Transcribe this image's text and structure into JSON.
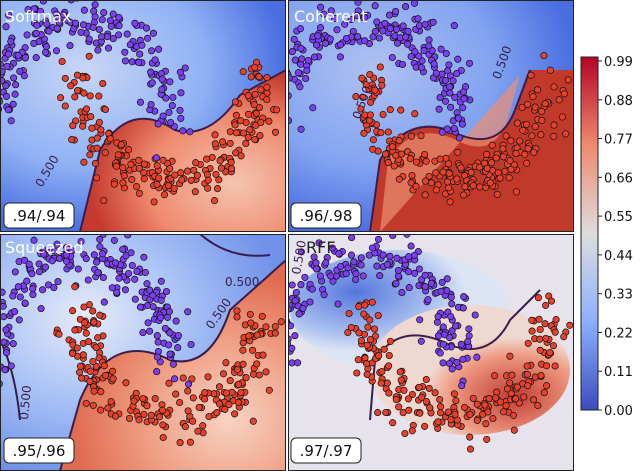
{
  "chart_data": [
    {
      "type": "heatmap",
      "title": "Softmax",
      "score": ".94/.94",
      "contour_labels": [
        "0.500"
      ],
      "decision_boundary": "sharp boundary tracing the two moons"
    },
    {
      "type": "heatmap",
      "title": "Coherent",
      "score": ".96/.98",
      "contour_labels": [
        "0.500",
        "0.500"
      ],
      "decision_boundary": "smooth boundary between the two moons"
    },
    {
      "type": "heatmap",
      "title": "Squeezed",
      "score": ".95/.96",
      "contour_labels": [
        "0.500",
        "0.500",
        "0.500"
      ],
      "decision_boundary": "boundary with secondary islands"
    },
    {
      "type": "heatmap",
      "title": "RFF",
      "score": ".97/.97",
      "contour_labels": [
        "0.500"
      ],
      "decision_boundary": "tight boundary around data with uncertain regions away from data"
    }
  ],
  "colorbar": {
    "ticks": [
      "0.99",
      "0.88",
      "0.77",
      "0.66",
      "0.55",
      "0.44",
      "0.33",
      "0.22",
      "0.11",
      "0.00"
    ],
    "range": [
      0.0,
      0.99
    ],
    "colormap": "coolwarm"
  },
  "colors": {
    "low": "#3b4cc0",
    "mid": "#dddddd",
    "high": "#b40426",
    "class_a_point": "#7b3ff0",
    "class_b_point": "#e8402a",
    "contour": "#3a1d4d"
  }
}
